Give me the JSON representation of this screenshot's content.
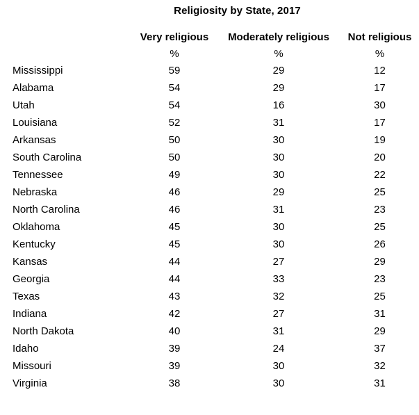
{
  "chart_data": {
    "type": "table",
    "title": "Religiosity by State, 2017",
    "columns": [
      "Very religious",
      "Moderately religious",
      "Not religious"
    ],
    "unit_row": [
      "%",
      "%",
      "%"
    ],
    "row_label_field": "State",
    "rows": [
      {
        "state": "Mississippi",
        "values": [
          59,
          29,
          12
        ]
      },
      {
        "state": "Alabama",
        "values": [
          54,
          29,
          17
        ]
      },
      {
        "state": "Utah",
        "values": [
          54,
          16,
          30
        ]
      },
      {
        "state": "Louisiana",
        "values": [
          52,
          31,
          17
        ]
      },
      {
        "state": "Arkansas",
        "values": [
          50,
          30,
          19
        ]
      },
      {
        "state": "South Carolina",
        "values": [
          50,
          30,
          20
        ]
      },
      {
        "state": "Tennessee",
        "values": [
          49,
          30,
          22
        ]
      },
      {
        "state": "Nebraska",
        "values": [
          46,
          29,
          25
        ]
      },
      {
        "state": "North Carolina",
        "values": [
          46,
          31,
          23
        ]
      },
      {
        "state": "Oklahoma",
        "values": [
          45,
          30,
          25
        ]
      },
      {
        "state": "Kentucky",
        "values": [
          45,
          30,
          26
        ]
      },
      {
        "state": "Kansas",
        "values": [
          44,
          27,
          29
        ]
      },
      {
        "state": "Georgia",
        "values": [
          44,
          33,
          23
        ]
      },
      {
        "state": "Texas",
        "values": [
          43,
          32,
          25
        ]
      },
      {
        "state": "Indiana",
        "values": [
          42,
          27,
          31
        ]
      },
      {
        "state": "North Dakota",
        "values": [
          40,
          31,
          29
        ]
      },
      {
        "state": "Idaho",
        "values": [
          39,
          24,
          37
        ]
      },
      {
        "state": "Missouri",
        "values": [
          39,
          30,
          32
        ]
      },
      {
        "state": "Virginia",
        "values": [
          38,
          30,
          31
        ]
      }
    ],
    "layout": {
      "grid": "off",
      "background": "#ffffff",
      "text_color": "#000000"
    }
  }
}
